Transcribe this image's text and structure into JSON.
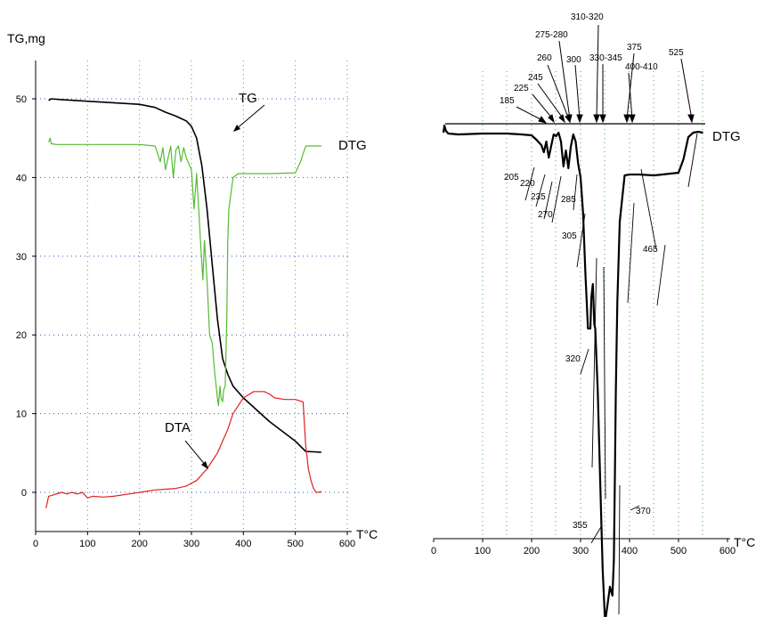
{
  "chart_data": [
    {
      "type": "line",
      "ylabel": "TG,mg",
      "xlabel": "T°C",
      "xlim": [
        0,
        600
      ],
      "ylim": [
        -5,
        55
      ],
      "xticks": [
        0,
        100,
        200,
        300,
        400,
        500,
        600
      ],
      "yticks": [
        0,
        10,
        20,
        30,
        40,
        50
      ],
      "grid": true,
      "series": [
        {
          "name": "TG",
          "color": "#000000",
          "x": [
            25,
            30,
            50,
            100,
            150,
            200,
            230,
            250,
            270,
            280,
            290,
            300,
            310,
            320,
            330,
            340,
            350,
            360,
            365,
            370,
            380,
            400,
            450,
            500,
            520,
            550
          ],
          "y": [
            49.8,
            50.0,
            49.9,
            49.7,
            49.5,
            49.3,
            48.9,
            48.3,
            47.8,
            47.5,
            47.2,
            46.5,
            45.0,
            41.5,
            36.0,
            29.0,
            22.0,
            17.0,
            16.0,
            15.0,
            13.5,
            12.0,
            9.0,
            6.5,
            5.2,
            5.1
          ]
        },
        {
          "name": "DTG",
          "color": "#55bb33",
          "x": [
            25,
            28,
            30,
            40,
            100,
            200,
            230,
            240,
            245,
            250,
            260,
            265,
            270,
            275,
            280,
            285,
            290,
            300,
            305,
            310,
            320,
            322,
            325,
            330,
            335,
            340,
            345,
            350,
            352,
            355,
            357,
            360,
            362,
            365,
            368,
            370,
            372,
            380,
            390,
            400,
            450,
            500,
            510,
            520,
            550
          ],
          "y": [
            44.5,
            45.0,
            44.3,
            44.2,
            44.2,
            44.2,
            44.0,
            42.0,
            43.8,
            41.0,
            44.0,
            40.0,
            43.5,
            44.0,
            42.0,
            43.8,
            42.5,
            41.0,
            36.0,
            40.5,
            29.0,
            27.0,
            32.0,
            27.0,
            20.0,
            19.0,
            15.0,
            12.0,
            11.0,
            13.5,
            12.0,
            11.5,
            13.0,
            13.5,
            22.0,
            32.0,
            36.0,
            40.0,
            40.5,
            40.5,
            40.5,
            40.6,
            42.0,
            44.0,
            44.0
          ]
        },
        {
          "name": "DTA",
          "color": "#e02020",
          "x": [
            20,
            25,
            35,
            50,
            60,
            70,
            80,
            90,
            100,
            110,
            130,
            150,
            180,
            200,
            230,
            250,
            270,
            290,
            310,
            330,
            350,
            360,
            370,
            380,
            400,
            420,
            440,
            450,
            460,
            480,
            500,
            515,
            520,
            525,
            530,
            535,
            540,
            545,
            550
          ],
          "y": [
            -2.0,
            -0.5,
            -0.3,
            0.0,
            -0.2,
            0.0,
            -0.2,
            0.0,
            -0.7,
            -0.5,
            -0.6,
            -0.5,
            -0.2,
            0.0,
            0.3,
            0.4,
            0.5,
            0.8,
            1.5,
            3.0,
            5.0,
            6.5,
            8.0,
            10.0,
            12.0,
            12.8,
            12.8,
            12.5,
            12.0,
            11.8,
            11.8,
            11.5,
            6.0,
            3.0,
            1.5,
            0.5,
            0.0,
            0.0,
            0.1
          ]
        }
      ],
      "annotations": [
        "TG",
        "DTG",
        "DTA"
      ]
    },
    {
      "type": "line",
      "xlabel": "T°C",
      "xlim": [
        0,
        600
      ],
      "xticks": [
        0,
        100,
        200,
        300,
        400,
        500,
        600
      ],
      "grid": true,
      "series": [
        {
          "name": "DTG",
          "color": "#000000",
          "x": [
            20,
            22,
            25,
            30,
            50,
            100,
            150,
            180,
            200,
            210,
            220,
            225,
            230,
            235,
            240,
            245,
            250,
            255,
            260,
            265,
            270,
            275,
            280,
            285,
            290,
            295,
            300,
            305,
            310,
            315,
            320,
            322,
            325,
            328,
            330,
            335,
            340,
            345,
            350,
            355,
            360,
            365,
            368,
            370,
            372,
            375,
            380,
            390,
            400,
            410,
            420,
            450,
            500,
            510,
            520,
            530,
            540,
            550
          ],
          "y": [
            -10,
            -2,
            -8,
            -11,
            -12,
            -11,
            -11,
            -12,
            -13,
            -18,
            -24,
            -32,
            -20,
            -38,
            -25,
            -12,
            -14,
            -10,
            -20,
            -48,
            -30,
            -50,
            -26,
            -12,
            -20,
            -45,
            -60,
            -100,
            -170,
            -230,
            -230,
            -195,
            -180,
            -225,
            -230,
            -300,
            -400,
            -500,
            -560,
            -540,
            -520,
            -530,
            -490,
            -400,
            -300,
            -200,
            -110,
            -58,
            -57,
            -57,
            -57,
            -58,
            -55,
            -40,
            -15,
            -10,
            -9,
            -10
          ]
        }
      ],
      "labels": [
        "185",
        "225",
        "245",
        "260",
        "275-280",
        "300",
        "310-320",
        "330-345",
        "375",
        "400-410",
        "525",
        "205",
        "220",
        "235",
        "270",
        "285",
        "305",
        "320",
        "355",
        "370",
        "465",
        "DTG"
      ]
    }
  ]
}
